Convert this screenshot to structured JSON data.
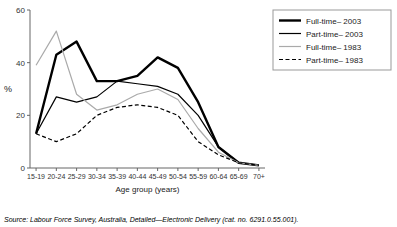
{
  "chart_data": {
    "type": "line",
    "categories": [
      "15-19",
      "20-24",
      "25-29",
      "30-34",
      "35-39",
      "40-44",
      "45-49",
      "50-54",
      "55-59",
      "60-64",
      "65-69",
      "70+"
    ],
    "series": [
      {
        "name": "Full-time– 2003",
        "color": "#000000",
        "line_style": "solid",
        "values": [
          13,
          43,
          48,
          33,
          33,
          35,
          42,
          38,
          25,
          8,
          2,
          1
        ]
      },
      {
        "name": "Part-time– 2003",
        "color": "#000000",
        "line_style": "solid",
        "values": [
          13,
          27,
          25,
          27,
          33,
          32,
          31,
          28,
          20,
          8,
          2,
          1
        ]
      },
      {
        "name": "Full-time– 1983",
        "color": "#aaaaaa",
        "line_style": "solid",
        "values": [
          39,
          52,
          28,
          22,
          24,
          28,
          30,
          26,
          15,
          6,
          2,
          1
        ]
      },
      {
        "name": "Part-time– 1983",
        "color": "#000000",
        "line_style": "dashed",
        "values": [
          13,
          10,
          13,
          20,
          23,
          24,
          23,
          20,
          10,
          5,
          2,
          1
        ]
      }
    ],
    "ylim": [
      0,
      60
    ],
    "yticks": [
      0,
      20,
      40,
      60
    ],
    "ylabel": "%",
    "xlabel": "Age group (years)",
    "annotations": [
      "Source:  Labour Force Survey, Australia, Detailed—Electronic Delivery (cat.  no.  6291.0.55.001)."
    ],
    "grid": false,
    "legend": "right"
  }
}
